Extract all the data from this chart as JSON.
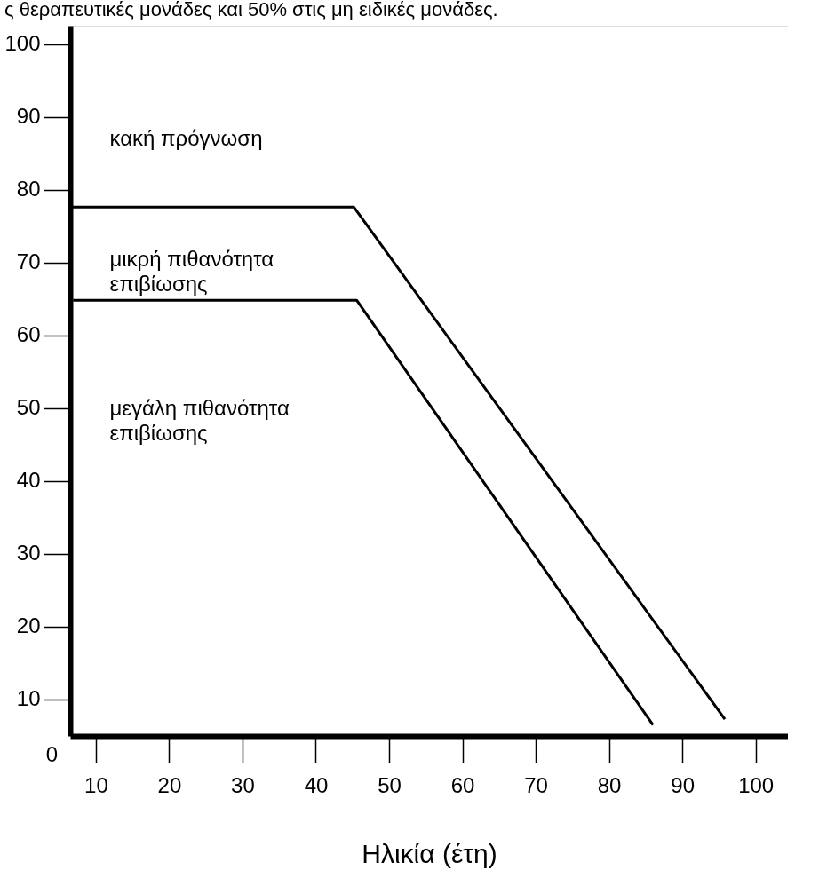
{
  "chart_data": {
    "type": "line",
    "title": "ς θεραπευτικές μονάδες και 50% στις μη ειδικές μονάδες.",
    "xlabel": "Ηλικία (έτη)",
    "xlim": [
      6.5,
      104.4
    ],
    "ylim": [
      5,
      102.5
    ],
    "xticks": [
      10,
      20,
      30,
      40,
      50,
      60,
      70,
      80,
      90,
      100
    ],
    "yticks": [
      10,
      20,
      30,
      40,
      50,
      60,
      70,
      80,
      90,
      100
    ],
    "grid": false,
    "marker": "none",
    "line_style": "solid",
    "series": [
      {
        "color": "#000000",
        "x": [
          6.5,
          45.2,
          95.8
        ],
        "values": [
          77.6,
          77.6,
          7.3
        ]
      },
      {
        "color": "#000000",
        "x": [
          6.9,
          45.6,
          86.0
        ],
        "values": [
          64.8,
          64.8,
          6.5
        ]
      }
    ],
    "annotations": [
      "κακή πρόγνωση",
      "μικρή πιθανότητα\nεπιβίωσης",
      "μεγάλη πιθανότητα\nεπιβίωσης",
      "0"
    ]
  }
}
